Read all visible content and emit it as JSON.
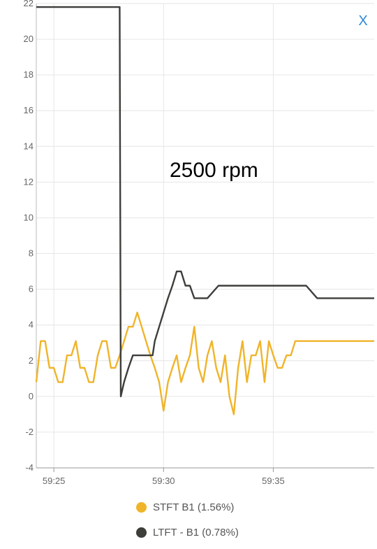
{
  "close_label": "X",
  "chart_data": {
    "type": "line",
    "annotation": "2500 rpm",
    "ylim": [
      -4,
      22
    ],
    "y_ticks": [
      -4,
      -2,
      0,
      2,
      4,
      6,
      8,
      10,
      12,
      14,
      16,
      18,
      20,
      22
    ],
    "x_tick_labels": [
      "59:25",
      "59:30",
      "59:35"
    ],
    "x_tick_values": [
      25,
      30,
      35
    ],
    "xlim": [
      24.2,
      39.6
    ],
    "grid": true,
    "legend_position": "bottom",
    "series": [
      {
        "name": "STFT B1 (1.56%)",
        "color": "#f0b429",
        "x": [
          24.2,
          24.4,
          24.6,
          24.8,
          25.0,
          25.2,
          25.4,
          25.6,
          25.8,
          26.0,
          26.2,
          26.4,
          26.6,
          26.8,
          27.0,
          27.2,
          27.4,
          27.6,
          27.8,
          28.0,
          28.2,
          28.4,
          28.6,
          28.8,
          29.0,
          29.2,
          29.4,
          29.6,
          29.8,
          30.0,
          30.2,
          30.4,
          30.6,
          30.8,
          31.0,
          31.2,
          31.4,
          31.6,
          31.8,
          32.0,
          32.2,
          32.4,
          32.6,
          32.8,
          33.0,
          33.2,
          33.4,
          33.6,
          33.8,
          34.0,
          34.2,
          34.4,
          34.6,
          34.8,
          35.0,
          35.2,
          35.4,
          35.6,
          35.8,
          36.0,
          36.2,
          36.4,
          36.6,
          36.8,
          37.0,
          37.2,
          37.4,
          37.6,
          38.0,
          38.5,
          39.0,
          39.6
        ],
        "values": [
          0.8,
          3.1,
          3.1,
          1.6,
          1.6,
          0.8,
          0.8,
          2.3,
          2.3,
          3.1,
          1.6,
          1.6,
          0.8,
          0.8,
          2.3,
          3.1,
          3.1,
          1.6,
          1.6,
          2.3,
          3.1,
          3.9,
          3.9,
          4.7,
          3.9,
          3.1,
          2.3,
          1.6,
          0.8,
          -0.8,
          0.8,
          1.6,
          2.3,
          0.8,
          1.6,
          2.3,
          3.9,
          1.6,
          0.8,
          2.3,
          3.1,
          1.6,
          0.8,
          2.3,
          0.0,
          -1.0,
          1.6,
          3.1,
          0.8,
          2.3,
          2.3,
          3.1,
          0.8,
          3.1,
          2.3,
          1.6,
          1.6,
          2.3,
          2.3,
          3.1,
          3.1,
          3.1,
          3.1,
          3.1,
          3.1,
          3.1,
          3.1,
          3.1,
          3.1,
          3.1,
          3.1,
          3.1
        ]
      },
      {
        "name": "LTFT - B1 (0.78%)",
        "color": "#3d3d3a",
        "x": [
          24.2,
          28.0,
          28.05,
          28.2,
          28.4,
          28.6,
          29.0,
          29.5,
          29.6,
          29.8,
          30.0,
          30.2,
          30.4,
          30.6,
          30.8,
          31.0,
          31.2,
          31.4,
          31.6,
          31.8,
          32.0,
          32.5,
          33.0,
          33.5,
          34.0,
          34.5,
          35.0,
          35.5,
          36.0,
          36.5,
          37.0,
          37.2,
          37.6,
          38.0,
          38.5,
          39.0,
          39.6
        ],
        "values": [
          21.8,
          21.8,
          0.0,
          0.8,
          1.6,
          2.3,
          2.3,
          2.3,
          3.1,
          3.9,
          4.7,
          5.5,
          6.2,
          7.0,
          7.0,
          6.2,
          6.2,
          5.5,
          5.5,
          5.5,
          5.5,
          6.2,
          6.2,
          6.2,
          6.2,
          6.2,
          6.2,
          6.2,
          6.2,
          6.2,
          5.5,
          5.5,
          5.5,
          5.5,
          5.5,
          5.5,
          5.5
        ]
      }
    ]
  }
}
